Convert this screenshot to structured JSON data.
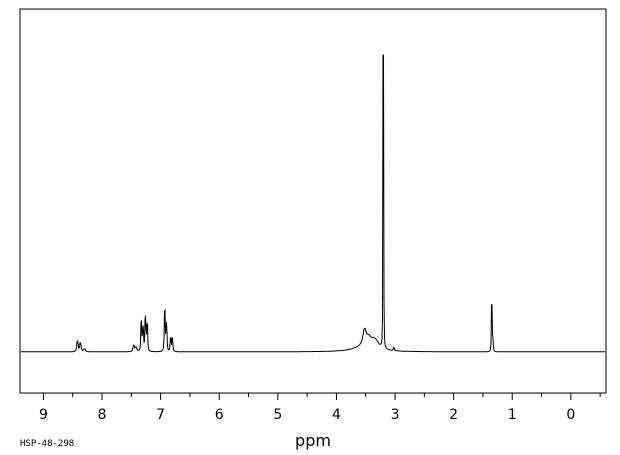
{
  "chart_data": {
    "type": "line",
    "title": "",
    "xlabel": "ppm",
    "ylabel": "",
    "footnote": "HSP-48-298",
    "x_reversed": true,
    "xlim": [
      -0.6,
      9.4
    ],
    "ylim": [
      -0.12,
      1.0
    ],
    "grid": false,
    "x_ticks": [
      9,
      8,
      7,
      6,
      5,
      4,
      3,
      2,
      1,
      0
    ],
    "x_tick_labels": [
      "9",
      "8",
      "7",
      "6",
      "5",
      "4",
      "3",
      "2",
      "1",
      "0"
    ],
    "minor_tick_step": 0.5,
    "peaks": [
      {
        "ppm": 8.42,
        "height": 0.03,
        "width": 0.01
      },
      {
        "ppm": 8.37,
        "height": 0.025,
        "width": 0.01
      },
      {
        "ppm": 8.3,
        "height": 0.008,
        "width": 0.015
      },
      {
        "ppm": 7.46,
        "height": 0.018,
        "width": 0.012
      },
      {
        "ppm": 7.42,
        "height": 0.012,
        "width": 0.012
      },
      {
        "ppm": 7.33,
        "height": 0.085,
        "width": 0.006
      },
      {
        "ppm": 7.3,
        "height": 0.07,
        "width": 0.006
      },
      {
        "ppm": 7.26,
        "height": 0.105,
        "width": 0.006
      },
      {
        "ppm": 7.23,
        "height": 0.08,
        "width": 0.006
      },
      {
        "ppm": 6.93,
        "height": 0.115,
        "width": 0.006
      },
      {
        "ppm": 6.9,
        "height": 0.08,
        "width": 0.006
      },
      {
        "ppm": 6.83,
        "height": 0.04,
        "width": 0.006
      },
      {
        "ppm": 6.8,
        "height": 0.04,
        "width": 0.006
      },
      {
        "ppm": 3.52,
        "height": 0.045,
        "width": 0.03
      },
      {
        "ppm": 3.45,
        "height": 0.02,
        "width": 0.04
      },
      {
        "ppm": 3.35,
        "height": 0.03,
        "width": 0.08
      },
      {
        "ppm": 3.55,
        "height": 0.012,
        "width": 0.2
      },
      {
        "ppm": 3.2,
        "height": 0.99,
        "width": 0.003
      },
      {
        "ppm": 3.02,
        "height": 0.01,
        "width": 0.006
      },
      {
        "ppm": 1.35,
        "height": 0.135,
        "width": 0.004
      },
      {
        "ppm": 1.33,
        "height": 0.04,
        "width": 0.004
      }
    ]
  }
}
